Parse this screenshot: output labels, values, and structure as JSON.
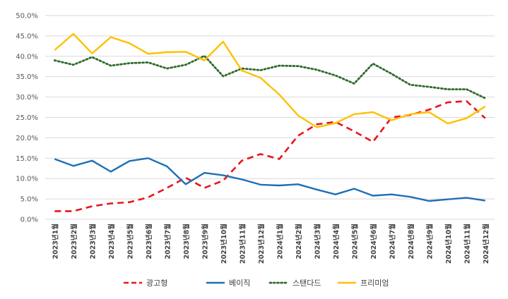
{
  "chart_data": {
    "type": "line",
    "title": "",
    "xlabel": "",
    "ylabel": "",
    "ylim": [
      0,
      50
    ],
    "y_tick_step": 5,
    "y_tick_format": "percent-1-decimal",
    "grid": "horizontal",
    "legend_position": "bottom",
    "categories": [
      "2023년1월",
      "2023년2월",
      "2023년3월",
      "2023년4월",
      "2023년5월",
      "2023년6월",
      "2023년7월",
      "2023년8월",
      "2023년9월",
      "2023년10월",
      "2023년11월",
      "2023년12월",
      "2024년1월",
      "2024년2월",
      "2024년3월",
      "2024년4월",
      "2024년5월",
      "2024년6월",
      "2024년7월",
      "2024년8월",
      "2024년9월",
      "2024년10월",
      "2024년11월",
      "2024년12월"
    ],
    "y_ticks": [
      "0.0%",
      "5.0%",
      "10.0%",
      "15.0%",
      "20.0%",
      "25.0%",
      "30.0%",
      "35.0%",
      "40.0%",
      "45.0%",
      "50.0%"
    ],
    "series": [
      {
        "name": "광고형",
        "color": "#e8151b",
        "style": "dashed",
        "values": [
          2.0,
          2.0,
          3.2,
          3.9,
          4.2,
          5.4,
          7.7,
          10.2,
          7.7,
          9.5,
          14.4,
          16.0,
          14.8,
          20.5,
          23.3,
          23.9,
          21.6,
          19.0,
          25.0,
          25.6,
          26.9,
          28.7,
          29.0,
          24.8
        ]
      },
      {
        "name": "베이직",
        "color": "#1f6fb5",
        "style": "solid",
        "values": [
          14.8,
          13.1,
          14.4,
          11.7,
          14.3,
          15.0,
          13.0,
          8.6,
          11.4,
          10.8,
          9.8,
          8.5,
          8.3,
          8.6,
          7.3,
          6.1,
          7.5,
          5.8,
          6.1,
          5.5,
          4.5,
          4.9,
          5.3,
          4.6
        ]
      },
      {
        "name": "스탠다드",
        "color": "#2d6a2d",
        "style": "dotted",
        "values": [
          39.0,
          37.9,
          39.8,
          37.7,
          38.3,
          38.5,
          37.0,
          37.9,
          40.1,
          35.1,
          37.0,
          36.6,
          37.7,
          37.6,
          36.7,
          35.3,
          33.3,
          38.2,
          35.7,
          33.0,
          32.5,
          31.9,
          31.9,
          29.7
        ]
      },
      {
        "name": "프리미엄",
        "color": "#ffc000",
        "style": "solid",
        "values": [
          41.5,
          45.5,
          40.7,
          44.7,
          43.2,
          40.6,
          41.0,
          41.1,
          39.0,
          43.6,
          36.5,
          34.7,
          30.6,
          25.5,
          22.6,
          23.6,
          25.8,
          26.3,
          24.3,
          25.8,
          26.3,
          23.5,
          24.8,
          27.7
        ]
      }
    ]
  }
}
